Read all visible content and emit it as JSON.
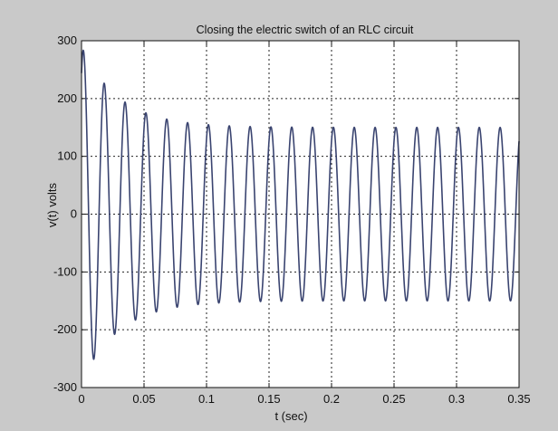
{
  "figure": {
    "background_color": "#c9c9c9",
    "plot_background_color": "#ffffff",
    "line_color": "#3a4470",
    "grid_color": "#222222"
  },
  "chart_data": {
    "type": "line",
    "title": "Closing the electric switch of an RLC circuit",
    "xlabel": "t (sec)",
    "ylabel": "v(t) volts",
    "xlim": [
      0,
      0.35
    ],
    "ylim": [
      -300,
      300
    ],
    "grid": true,
    "x_ticks": [
      0,
      0.05,
      0.1,
      0.15,
      0.2,
      0.25,
      0.3,
      0.35
    ],
    "x_tick_labels": [
      "0",
      "0.05",
      "0.1",
      "0.15",
      "0.2",
      "0.25",
      "0.3",
      "0.35"
    ],
    "y_ticks": [
      -300,
      -200,
      -100,
      0,
      100,
      200,
      300
    ],
    "y_tick_labels": [
      "-300",
      "-200",
      "-100",
      "0",
      "100",
      "200",
      "300"
    ],
    "series": [
      {
        "frequency_hz": 60,
        "steady_state_amplitude_v": 150,
        "initial_offset_v": 140,
        "decay_time_constant_s": 0.03,
        "peaks": [
          {
            "t": 0.004,
            "v": 290
          },
          {
            "t": 0.021,
            "v": 260
          },
          {
            "t": 0.037,
            "v": 235
          },
          {
            "t": 0.054,
            "v": 218
          },
          {
            "t": 0.071,
            "v": 207
          },
          {
            "t": 0.087,
            "v": 190
          },
          {
            "t": 0.104,
            "v": 182
          },
          {
            "t": 0.154,
            "v": 163
          },
          {
            "t": 0.204,
            "v": 155
          },
          {
            "t": 0.254,
            "v": 152
          },
          {
            "t": 0.304,
            "v": 150
          },
          {
            "t": 0.337,
            "v": 150
          }
        ],
        "troughs": [
          {
            "t": 0.012,
            "v": -270
          },
          {
            "t": 0.029,
            "v": -240
          },
          {
            "t": 0.046,
            "v": -220
          },
          {
            "t": 0.062,
            "v": -200
          },
          {
            "t": 0.112,
            "v": -175
          },
          {
            "t": 0.162,
            "v": -160
          },
          {
            "t": 0.212,
            "v": -153
          },
          {
            "t": 0.262,
            "v": -150
          },
          {
            "t": 0.312,
            "v": -148
          },
          {
            "t": 0.346,
            "v": -148
          }
        ]
      }
    ]
  }
}
